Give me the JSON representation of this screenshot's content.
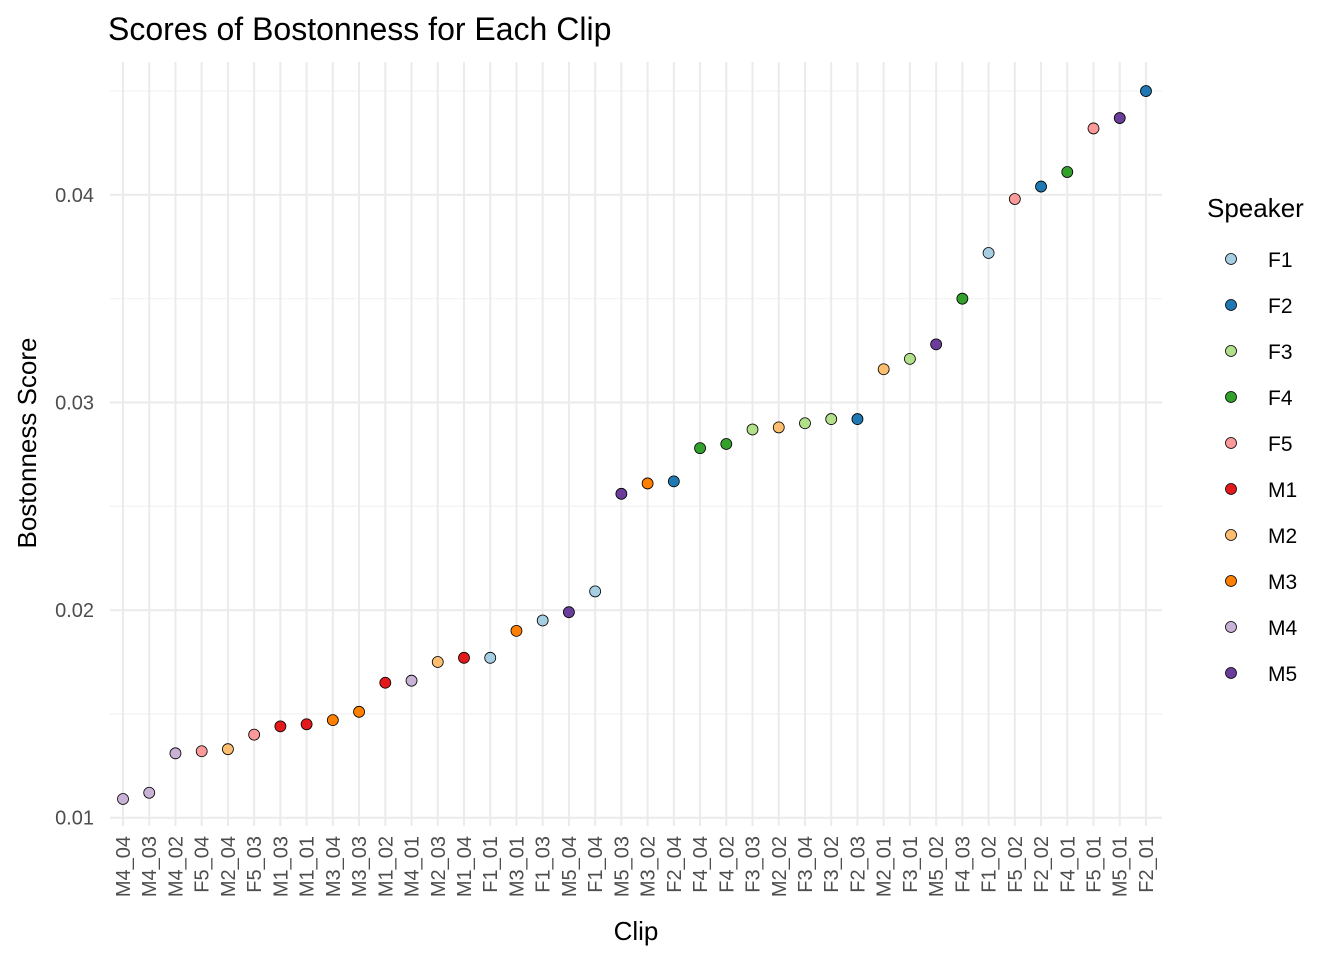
{
  "chart_data": {
    "type": "scatter",
    "title": "Scores of Bostonness for Each Clip",
    "xlabel": "Clip",
    "ylabel": "Bostonness Score",
    "ylim": [
      0.0096,
      0.0464
    ],
    "yticks": [
      0.01,
      0.02,
      0.03,
      0.04
    ],
    "ytick_labels": [
      "0.01",
      "0.02",
      "0.03",
      "0.04"
    ],
    "grid": true,
    "legend": {
      "title": "Speaker",
      "position": "right",
      "entries": [
        {
          "label": "F1",
          "color": "#a6cee3"
        },
        {
          "label": "F2",
          "color": "#1f78b4"
        },
        {
          "label": "F3",
          "color": "#b2df8a"
        },
        {
          "label": "F4",
          "color": "#33a02c"
        },
        {
          "label": "F5",
          "color": "#fb9a99"
        },
        {
          "label": "M1",
          "color": "#e31a1c"
        },
        {
          "label": "M2",
          "color": "#fdbf6f"
        },
        {
          "label": "M3",
          "color": "#ff7f00"
        },
        {
          "label": "M4",
          "color": "#cab2d6"
        },
        {
          "label": "M5",
          "color": "#6a3d9a"
        }
      ]
    },
    "points": [
      {
        "clip": "M4_04",
        "speaker": "M4",
        "value": 0.0109
      },
      {
        "clip": "M4_03",
        "speaker": "M4",
        "value": 0.0112
      },
      {
        "clip": "M4_02",
        "speaker": "M4",
        "value": 0.0131
      },
      {
        "clip": "F5_04",
        "speaker": "F5",
        "value": 0.0132
      },
      {
        "clip": "M2_04",
        "speaker": "M2",
        "value": 0.0133
      },
      {
        "clip": "F5_03",
        "speaker": "F5",
        "value": 0.014
      },
      {
        "clip": "M1_03",
        "speaker": "M1",
        "value": 0.0144
      },
      {
        "clip": "M1_01",
        "speaker": "M1",
        "value": 0.0145
      },
      {
        "clip": "M3_04",
        "speaker": "M3",
        "value": 0.0147
      },
      {
        "clip": "M3_03",
        "speaker": "M3",
        "value": 0.0151
      },
      {
        "clip": "M1_02",
        "speaker": "M1",
        "value": 0.0165
      },
      {
        "clip": "M4_01",
        "speaker": "M4",
        "value": 0.0166
      },
      {
        "clip": "M2_03",
        "speaker": "M2",
        "value": 0.0175
      },
      {
        "clip": "M1_04",
        "speaker": "M1",
        "value": 0.0177
      },
      {
        "clip": "F1_01",
        "speaker": "F1",
        "value": 0.0177
      },
      {
        "clip": "M3_01",
        "speaker": "M3",
        "value": 0.019
      },
      {
        "clip": "F1_03",
        "speaker": "F1",
        "value": 0.0195
      },
      {
        "clip": "M5_04",
        "speaker": "M5",
        "value": 0.0199
      },
      {
        "clip": "F1_04",
        "speaker": "F1",
        "value": 0.0209
      },
      {
        "clip": "M5_03",
        "speaker": "M5",
        "value": 0.0256
      },
      {
        "clip": "M3_02",
        "speaker": "M3",
        "value": 0.0261
      },
      {
        "clip": "F2_04",
        "speaker": "F2",
        "value": 0.0262
      },
      {
        "clip": "F4_04",
        "speaker": "F4",
        "value": 0.0278
      },
      {
        "clip": "F4_02",
        "speaker": "F4",
        "value": 0.028
      },
      {
        "clip": "F3_03",
        "speaker": "F3",
        "value": 0.0287
      },
      {
        "clip": "M2_02",
        "speaker": "M2",
        "value": 0.0288
      },
      {
        "clip": "F3_04",
        "speaker": "F3",
        "value": 0.029
      },
      {
        "clip": "F3_02",
        "speaker": "F3",
        "value": 0.0292
      },
      {
        "clip": "F2_03",
        "speaker": "F2",
        "value": 0.0292
      },
      {
        "clip": "M2_01",
        "speaker": "M2",
        "value": 0.0316
      },
      {
        "clip": "F3_01",
        "speaker": "F3",
        "value": 0.0321
      },
      {
        "clip": "M5_02",
        "speaker": "M5",
        "value": 0.0328
      },
      {
        "clip": "F4_03",
        "speaker": "F4",
        "value": 0.035
      },
      {
        "clip": "F1_02",
        "speaker": "F1",
        "value": 0.0372
      },
      {
        "clip": "F5_02",
        "speaker": "F5",
        "value": 0.0398
      },
      {
        "clip": "F2_02",
        "speaker": "F2",
        "value": 0.0404
      },
      {
        "clip": "F4_01",
        "speaker": "F4",
        "value": 0.0411
      },
      {
        "clip": "F5_01",
        "speaker": "F5",
        "value": 0.0432
      },
      {
        "clip": "M5_01",
        "speaker": "M5",
        "value": 0.0437
      },
      {
        "clip": "F2_01",
        "speaker": "F2",
        "value": 0.045
      }
    ]
  }
}
